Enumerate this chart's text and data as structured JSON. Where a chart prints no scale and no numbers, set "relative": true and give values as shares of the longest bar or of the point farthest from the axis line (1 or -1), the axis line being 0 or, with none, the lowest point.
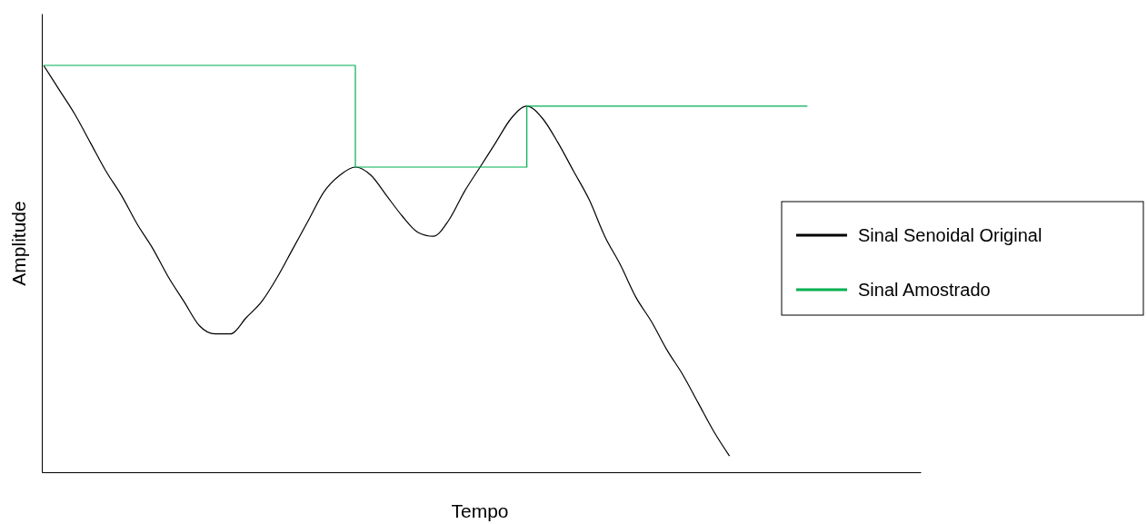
{
  "chart_data": {
    "type": "line",
    "relative": true,
    "xlabel": "Tempo",
    "ylabel": "Amplitude",
    "legend": "right",
    "line_style": "solid",
    "marker": "none",
    "categories": [
      null,
      null,
      null,
      null,
      null,
      null,
      null,
      null,
      null,
      null,
      null,
      null,
      null,
      null,
      null,
      null,
      null,
      null,
      null,
      null,
      null,
      null,
      null,
      null,
      null,
      null,
      null,
      null,
      null,
      null,
      null,
      null,
      null,
      null,
      null,
      null,
      null,
      null,
      null,
      null,
      null,
      null,
      null,
      null,
      null,
      null,
      null,
      null,
      null,
      null
    ],
    "series": [
      {
        "name": "Sinal Senoidal Original",
        "color": "#000000",
        "values": [
          1.0,
          0.94,
          0.88,
          0.81,
          0.74,
          0.68,
          0.61,
          0.55,
          0.48,
          0.42,
          0.36,
          0.34,
          0.34,
          0.38,
          0.42,
          0.48,
          0.55,
          0.62,
          0.69,
          0.73,
          0.75,
          0.73,
          0.68,
          0.63,
          0.59,
          0.58,
          0.62,
          0.69,
          0.75,
          0.81,
          0.87,
          0.9,
          0.87,
          0.81,
          0.74,
          0.67,
          0.58,
          0.51,
          0.43,
          0.37,
          0.3,
          0.24,
          0.17,
          0.1,
          0.04,
          null,
          null,
          null,
          null,
          null
        ]
      },
      {
        "name": "Sinal Amostrado",
        "color": "#00b050",
        "type": "step",
        "values": [
          1.0,
          1.0,
          1.0,
          1.0,
          1.0,
          1.0,
          1.0,
          1.0,
          1.0,
          1.0,
          1.0,
          1.0,
          1.0,
          1.0,
          1.0,
          1.0,
          1.0,
          1.0,
          1.0,
          1.0,
          0.75,
          0.75,
          0.75,
          0.75,
          0.75,
          0.75,
          0.75,
          0.75,
          0.75,
          0.75,
          0.75,
          0.9,
          0.9,
          0.9,
          0.9,
          0.9,
          0.9,
          0.9,
          0.9,
          0.9,
          0.9,
          0.9,
          0.9,
          0.9,
          0.9,
          0.9,
          0.9,
          0.9,
          0.9,
          0.9
        ]
      }
    ]
  }
}
